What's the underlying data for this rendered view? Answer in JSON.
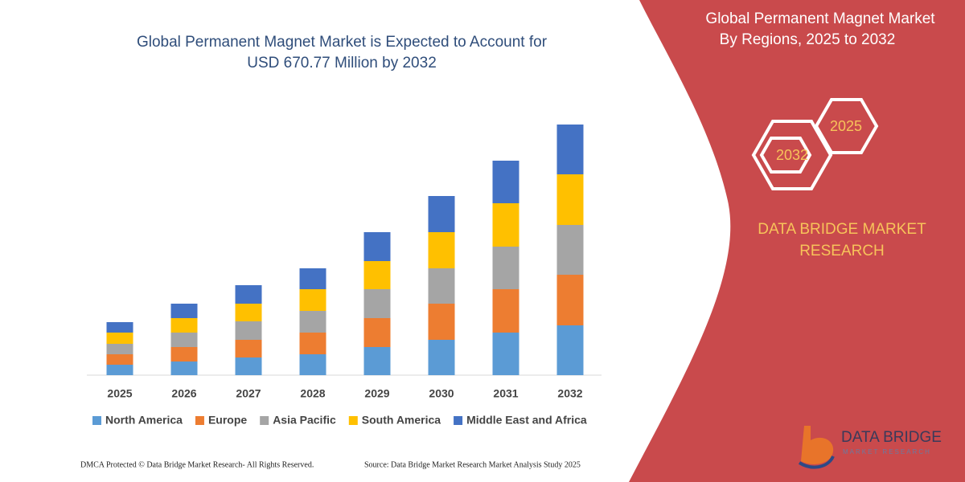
{
  "chart_data": {
    "type": "stacked_bar",
    "title": [
      "Global Permanent Magnet Market is Expected to Account for",
      "USD 670.77 Million by 2032"
    ],
    "categories": [
      "2025",
      "2026",
      "2027",
      "2028",
      "2029",
      "2030",
      "2031",
      "2032"
    ],
    "series": [
      {
        "name": "North America",
        "color": "#5b9bd5",
        "values": [
          13,
          17,
          22,
          26,
          35,
          44,
          53,
          62
        ]
      },
      {
        "name": "Europe",
        "color": "#ed7d31",
        "values": [
          13,
          18,
          22,
          27,
          36,
          45,
          54,
          63
        ]
      },
      {
        "name": "Asia Pacific",
        "color": "#a5a5a5",
        "values": [
          13,
          18,
          23,
          27,
          36,
          44,
          53,
          62
        ]
      },
      {
        "name": "South America",
        "color": "#ffc000",
        "values": [
          14,
          18,
          22,
          27,
          35,
          45,
          54,
          63
        ]
      },
      {
        "name": "Middle East and Africa",
        "color": "#4472c4",
        "values": [
          13,
          18,
          23,
          26,
          36,
          45,
          53,
          62
        ]
      }
    ],
    "ylim": [
      0,
      320
    ]
  },
  "panel": {
    "title": [
      "Global Permanent Magnet Market",
      "By Regions, 2025 to 2032"
    ],
    "hexagons": [
      "2032",
      "2025"
    ],
    "brand": [
      "DATA BRIDGE MARKET",
      "RESEARCH"
    ],
    "logo": [
      "DATA BRIDGE",
      "MARKET RESEARCH"
    ]
  },
  "footer": {
    "left": "DMCA Protected © Data Bridge Market Research- All Rights Reserved.",
    "right": "Source: Data Bridge Market Research Market Analysis Study 2025"
  }
}
